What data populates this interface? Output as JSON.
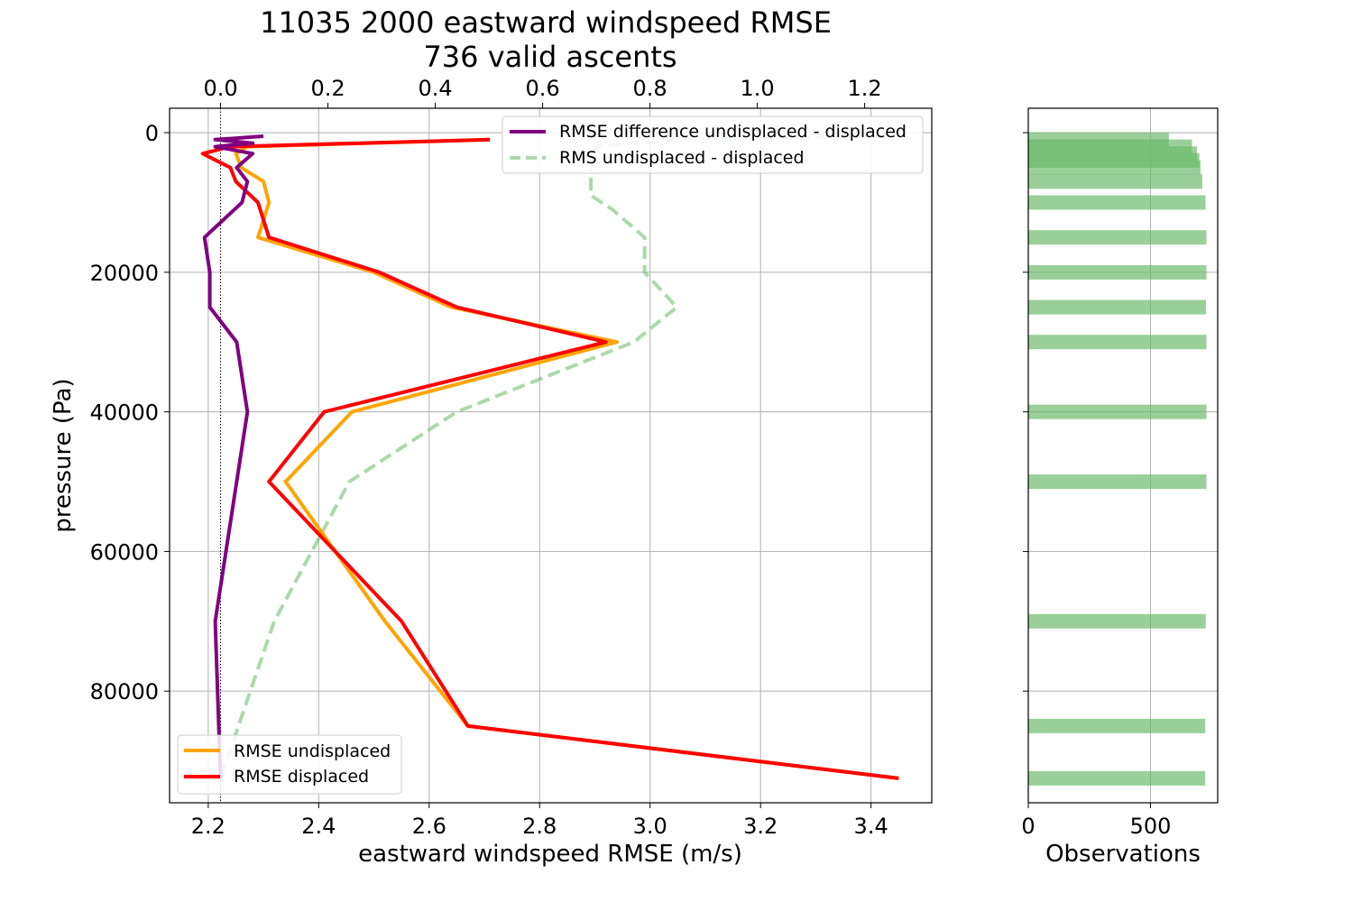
{
  "chart_data": [
    {
      "type": "line",
      "title": "11035 2000 eastward windspeed RMSE",
      "subtitle": "736 valid ascents",
      "xlabel": "eastward windspeed RMSE (m/s)",
      "ylabel": "pressure (Pa)",
      "xlim": [
        2.13,
        3.51
      ],
      "ylim": [
        96000,
        -3500
      ],
      "y_inverted": true,
      "grid": true,
      "x_ticks": [
        2.2,
        2.4,
        2.6,
        2.8,
        3.0,
        3.2,
        3.4
      ],
      "x_tick_labels": [
        "2.2",
        "2.4",
        "2.6",
        "2.8",
        "3.0",
        "3.2",
        "3.4"
      ],
      "y_ticks": [
        0,
        20000,
        40000,
        60000,
        80000
      ],
      "y_tick_labels": [
        "0",
        "20000",
        "40000",
        "60000",
        "80000"
      ],
      "secondary_x": {
        "position": "top",
        "xlim": [
          -0.095,
          1.325
        ],
        "ticks": [
          0.0,
          0.2,
          0.4,
          0.6,
          0.8,
          1.0,
          1.2
        ],
        "tick_labels": [
          "0.0",
          "0.2",
          "0.4",
          "0.6",
          "0.8",
          "1.0",
          "1.2"
        ]
      },
      "zero_reference_line": {
        "axis": "top",
        "x": 0.0,
        "style": "dotted"
      },
      "series": [
        {
          "name": "RMSE undisplaced",
          "axis": "bottom",
          "color": "#ffa500",
          "style": "solid",
          "points": [
            [
              2.71,
              1000
            ],
            [
              2.27,
              2000
            ],
            [
              2.25,
              3000
            ],
            [
              2.26,
              5000
            ],
            [
              2.3,
              7000
            ],
            [
              2.31,
              10000
            ],
            [
              2.29,
              15000
            ],
            [
              2.5,
              20000
            ],
            [
              2.64,
              25000
            ],
            [
              2.94,
              30000
            ],
            [
              2.46,
              40000
            ],
            [
              2.34,
              50000
            ],
            [
              2.52,
              70000
            ],
            [
              2.67,
              85000
            ],
            [
              3.45,
              92500
            ]
          ]
        },
        {
          "name": "RMSE displaced",
          "axis": "bottom",
          "color": "#ff0000",
          "style": "solid",
          "points": [
            [
              2.71,
              1000
            ],
            [
              2.24,
              2000
            ],
            [
              2.19,
              3000
            ],
            [
              2.24,
              5000
            ],
            [
              2.25,
              7000
            ],
            [
              2.29,
              10000
            ],
            [
              2.31,
              15000
            ],
            [
              2.51,
              20000
            ],
            [
              2.65,
              25000
            ],
            [
              2.92,
              30000
            ],
            [
              2.41,
              40000
            ],
            [
              2.31,
              50000
            ],
            [
              2.55,
              70000
            ],
            [
              2.67,
              85000
            ],
            [
              3.45,
              92500
            ]
          ]
        },
        {
          "name": "RMSE difference undisplaced - displaced",
          "axis": "top",
          "color": "#800080",
          "style": "solid",
          "points": [
            [
              0.08,
              500
            ],
            [
              -0.01,
              1000
            ],
            [
              0.06,
              1500
            ],
            [
              -0.01,
              2000
            ],
            [
              0.06,
              3000
            ],
            [
              0.03,
              5000
            ],
            [
              0.05,
              7000
            ],
            [
              0.04,
              10000
            ],
            [
              -0.03,
              15000
            ],
            [
              -0.02,
              20000
            ],
            [
              -0.02,
              25000
            ],
            [
              0.03,
              30000
            ],
            [
              0.05,
              40000
            ],
            [
              -0.01,
              70000
            ],
            [
              0.0,
              92500
            ]
          ]
        },
        {
          "name": "RMS undisplaced - displaced",
          "axis": "top",
          "color": "#6ab86a",
          "style": "dashed",
          "points": [
            [
              1.24,
              500
            ],
            [
              0.85,
              1000
            ],
            [
              0.7,
              2000
            ],
            [
              0.69,
              5000
            ],
            [
              0.69,
              7000
            ],
            [
              0.69,
              9000
            ],
            [
              0.73,
              11000
            ],
            [
              0.79,
              15000
            ],
            [
              0.79,
              20000
            ],
            [
              0.85,
              25000
            ],
            [
              0.77,
              30000
            ],
            [
              0.44,
              40000
            ],
            [
              0.24,
              50000
            ],
            [
              0.1,
              70000
            ],
            [
              0.0,
              92500
            ]
          ]
        }
      ],
      "legends": [
        {
          "placement": "upper right",
          "entries": [
            "RMSE difference undisplaced - displaced",
            "RMS undisplaced - displaced"
          ]
        },
        {
          "placement": "lower left",
          "entries": [
            "RMSE undisplaced",
            "RMSE displaced"
          ]
        }
      ]
    },
    {
      "type": "bar",
      "orientation": "horizontal",
      "xlabel": "Observations",
      "xlim": [
        0,
        775
      ],
      "x_ticks": [
        0,
        500
      ],
      "x_tick_labels": [
        "0",
        "500"
      ],
      "ylim": [
        96000,
        -3500
      ],
      "shares_y_with": "main",
      "grid": true,
      "bar_color": "#6ab86a",
      "bars": [
        {
          "pressure": 1000,
          "value": 575
        },
        {
          "pressure": 2000,
          "value": 670
        },
        {
          "pressure": 3000,
          "value": 690
        },
        {
          "pressure": 4000,
          "value": 700
        },
        {
          "pressure": 5000,
          "value": 705
        },
        {
          "pressure": 7000,
          "value": 712
        },
        {
          "pressure": 10000,
          "value": 725
        },
        {
          "pressure": 15000,
          "value": 729
        },
        {
          "pressure": 20000,
          "value": 729
        },
        {
          "pressure": 25000,
          "value": 727
        },
        {
          "pressure": 30000,
          "value": 729
        },
        {
          "pressure": 40000,
          "value": 729
        },
        {
          "pressure": 50000,
          "value": 729
        },
        {
          "pressure": 70000,
          "value": 726
        },
        {
          "pressure": 85000,
          "value": 724
        },
        {
          "pressure": 92500,
          "value": 724
        }
      ]
    }
  ]
}
